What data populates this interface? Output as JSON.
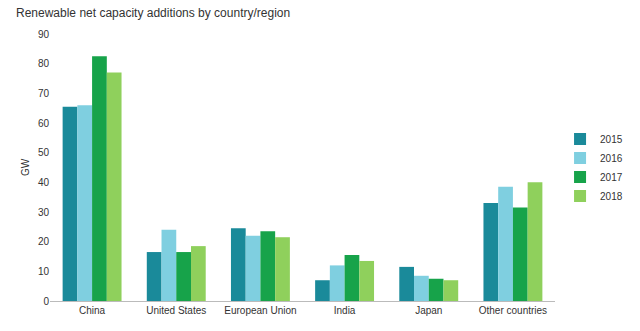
{
  "chart_data": {
    "type": "bar",
    "title": "Renewable net capacity additions by country/region",
    "ylabel": "GW",
    "categories": [
      "China",
      "United States",
      "European Union",
      "India",
      "Japan",
      "Other countries"
    ],
    "series": [
      {
        "name": "2015",
        "color": "#1a8a9a",
        "values": [
          65.5,
          16.5,
          24.5,
          7,
          11.5,
          33
        ]
      },
      {
        "name": "2016",
        "color": "#7fcfe0",
        "values": [
          66,
          24,
          22,
          12,
          8.5,
          38.5
        ]
      },
      {
        "name": "2017",
        "color": "#17a34a",
        "values": [
          82.5,
          16.5,
          23.5,
          15.5,
          7.5,
          31.5
        ]
      },
      {
        "name": "2018",
        "color": "#8fd05c",
        "values": [
          77,
          18.5,
          21.5,
          13.5,
          7,
          40
        ]
      }
    ],
    "ylim": [
      0,
      90
    ],
    "yticks": [
      0,
      10,
      20,
      30,
      40,
      50,
      60,
      70,
      80,
      90
    ],
    "grid": false,
    "legend": "right"
  }
}
